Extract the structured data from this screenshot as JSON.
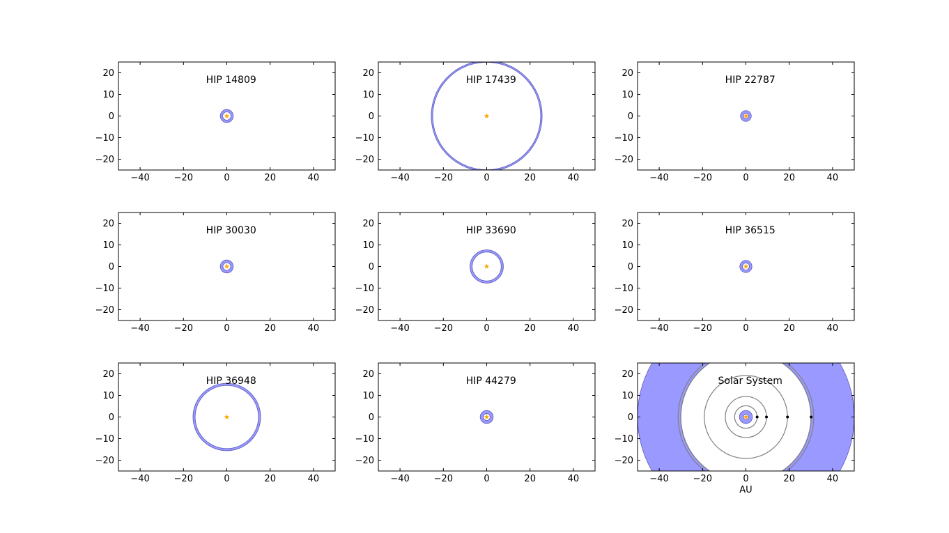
{
  "figure": {
    "x_unit_label": "AU",
    "colors": {
      "habitable_zone": "#9999ff",
      "zone_edge": "#5a5ab8",
      "star": "#ffa500",
      "orbit": "#808080",
      "planet": "#000000",
      "frame": "#000000"
    }
  },
  "chart_data": [
    {
      "type": "scatter",
      "title": "HIP 14809",
      "xlim": [
        -50,
        50
      ],
      "ylim": [
        -25,
        25
      ],
      "xticks": [
        -40,
        -20,
        0,
        20,
        40
      ],
      "yticks": [
        20,
        10,
        0,
        -10,
        -20
      ],
      "tick_labels_x": [
        "−40",
        "−20",
        "0",
        "20",
        "40"
      ],
      "tick_labels_y": [
        "20",
        "10",
        "0",
        "−10",
        "−20"
      ],
      "star": [
        0,
        0
      ],
      "habitable_zone": {
        "inner": 1.9,
        "outer": 3.0
      },
      "orbits": [],
      "planets": []
    },
    {
      "type": "scatter",
      "title": "HIP 17439",
      "xlim": [
        -50,
        50
      ],
      "ylim": [
        -25,
        25
      ],
      "xticks": [
        -40,
        -20,
        0,
        20,
        40
      ],
      "yticks": [
        20,
        10,
        0,
        -10,
        -20
      ],
      "tick_labels_x": [
        "−40",
        "−20",
        "0",
        "20",
        "40"
      ],
      "tick_labels_y": [
        "20",
        "10",
        "0",
        "−10",
        "−20"
      ],
      "star": [
        0,
        0
      ],
      "habitable_zone": {
        "inner": 24.9,
        "outer": 25.6
      },
      "orbits": [],
      "planets": []
    },
    {
      "type": "scatter",
      "title": "HIP 22787",
      "xlim": [
        -50,
        50
      ],
      "ylim": [
        -25,
        25
      ],
      "xticks": [
        -40,
        -20,
        0,
        20,
        40
      ],
      "yticks": [
        20,
        10,
        0,
        -10,
        -20
      ],
      "tick_labels_x": [
        "−40",
        "−20",
        "0",
        "20",
        "40"
      ],
      "tick_labels_y": [
        "20",
        "10",
        "0",
        "−10",
        "−20"
      ],
      "star": [
        0,
        0
      ],
      "habitable_zone": {
        "inner": 1.2,
        "outer": 2.5
      },
      "orbits": [],
      "planets": []
    },
    {
      "type": "scatter",
      "title": "HIP 30030",
      "xlim": [
        -50,
        50
      ],
      "ylim": [
        -25,
        25
      ],
      "xticks": [
        -40,
        -20,
        0,
        20,
        40
      ],
      "yticks": [
        20,
        10,
        0,
        -10,
        -20
      ],
      "tick_labels_x": [
        "−40",
        "−20",
        "0",
        "20",
        "40"
      ],
      "tick_labels_y": [
        "20",
        "10",
        "0",
        "−10",
        "−20"
      ],
      "star": [
        0,
        0
      ],
      "habitable_zone": {
        "inner": 1.8,
        "outer": 3.0
      },
      "orbits": [],
      "planets": []
    },
    {
      "type": "scatter",
      "title": "HIP 33690",
      "xlim": [
        -50,
        50
      ],
      "ylim": [
        -25,
        25
      ],
      "xticks": [
        -40,
        -20,
        0,
        20,
        40
      ],
      "yticks": [
        20,
        10,
        0,
        -10,
        -20
      ],
      "tick_labels_x": [
        "−40",
        "−20",
        "0",
        "20",
        "40"
      ],
      "tick_labels_y": [
        "20",
        "10",
        "0",
        "−10",
        "−20"
      ],
      "star": [
        0,
        0
      ],
      "habitable_zone": {
        "inner": 6.7,
        "outer": 7.7
      },
      "orbits": [],
      "planets": []
    },
    {
      "type": "scatter",
      "title": "HIP 36515",
      "xlim": [
        -50,
        50
      ],
      "ylim": [
        -25,
        25
      ],
      "xticks": [
        -40,
        -20,
        0,
        20,
        40
      ],
      "yticks": [
        20,
        10,
        0,
        -10,
        -20
      ],
      "tick_labels_x": [
        "−40",
        "−20",
        "0",
        "20",
        "40"
      ],
      "tick_labels_y": [
        "20",
        "10",
        "0",
        "−10",
        "−20"
      ],
      "star": [
        0,
        0
      ],
      "habitable_zone": {
        "inner": 1.6,
        "outer": 2.8
      },
      "orbits": [],
      "planets": []
    },
    {
      "type": "scatter",
      "title": "HIP 36948",
      "xlim": [
        -50,
        50
      ],
      "ylim": [
        -25,
        25
      ],
      "xticks": [
        -40,
        -20,
        0,
        20,
        40
      ],
      "yticks": [
        20,
        10,
        0,
        -10,
        -20
      ],
      "tick_labels_x": [
        "−40",
        "−20",
        "0",
        "20",
        "40"
      ],
      "tick_labels_y": [
        "20",
        "10",
        "0",
        "−10",
        "−20"
      ],
      "star": [
        0,
        0
      ],
      "habitable_zone": {
        "inner": 14.6,
        "outer": 15.6
      },
      "orbits": [],
      "planets": []
    },
    {
      "type": "scatter",
      "title": "HIP 44279",
      "xlim": [
        -50,
        50
      ],
      "ylim": [
        -25,
        25
      ],
      "xticks": [
        -40,
        -20,
        0,
        20,
        40
      ],
      "yticks": [
        20,
        10,
        0,
        -10,
        -20
      ],
      "tick_labels_x": [
        "−40",
        "−20",
        "0",
        "20",
        "40"
      ],
      "tick_labels_y": [
        "20",
        "10",
        "0",
        "−10",
        "−20"
      ],
      "star": [
        0,
        0
      ],
      "habitable_zone": {
        "inner": 1.6,
        "outer": 3.0
      },
      "orbits": [],
      "planets": []
    },
    {
      "type": "scatter",
      "title": "Solar System",
      "xlabel": "AU",
      "xlim": [
        -50,
        50
      ],
      "ylim": [
        -25,
        25
      ],
      "xticks": [
        -40,
        -20,
        0,
        20,
        40
      ],
      "yticks": [
        20,
        10,
        0,
        -10,
        -20
      ],
      "tick_labels_x": [
        "−40",
        "−20",
        "0",
        "20",
        "40"
      ],
      "tick_labels_y": [
        "20",
        "10",
        "0",
        "−10",
        "−20"
      ],
      "star": [
        0,
        0
      ],
      "habitable_zone": {
        "inner": 1.2,
        "outer": 3.0
      },
      "kuiper_belt": {
        "inner": 30,
        "outer": 50
      },
      "orbits": [
        5.2,
        9.5,
        19.2,
        30.1,
        31.3
      ],
      "planets": [
        [
          5.2,
          0
        ],
        [
          9.5,
          0
        ],
        [
          19.2,
          0
        ],
        [
          30.1,
          0
        ]
      ]
    }
  ]
}
